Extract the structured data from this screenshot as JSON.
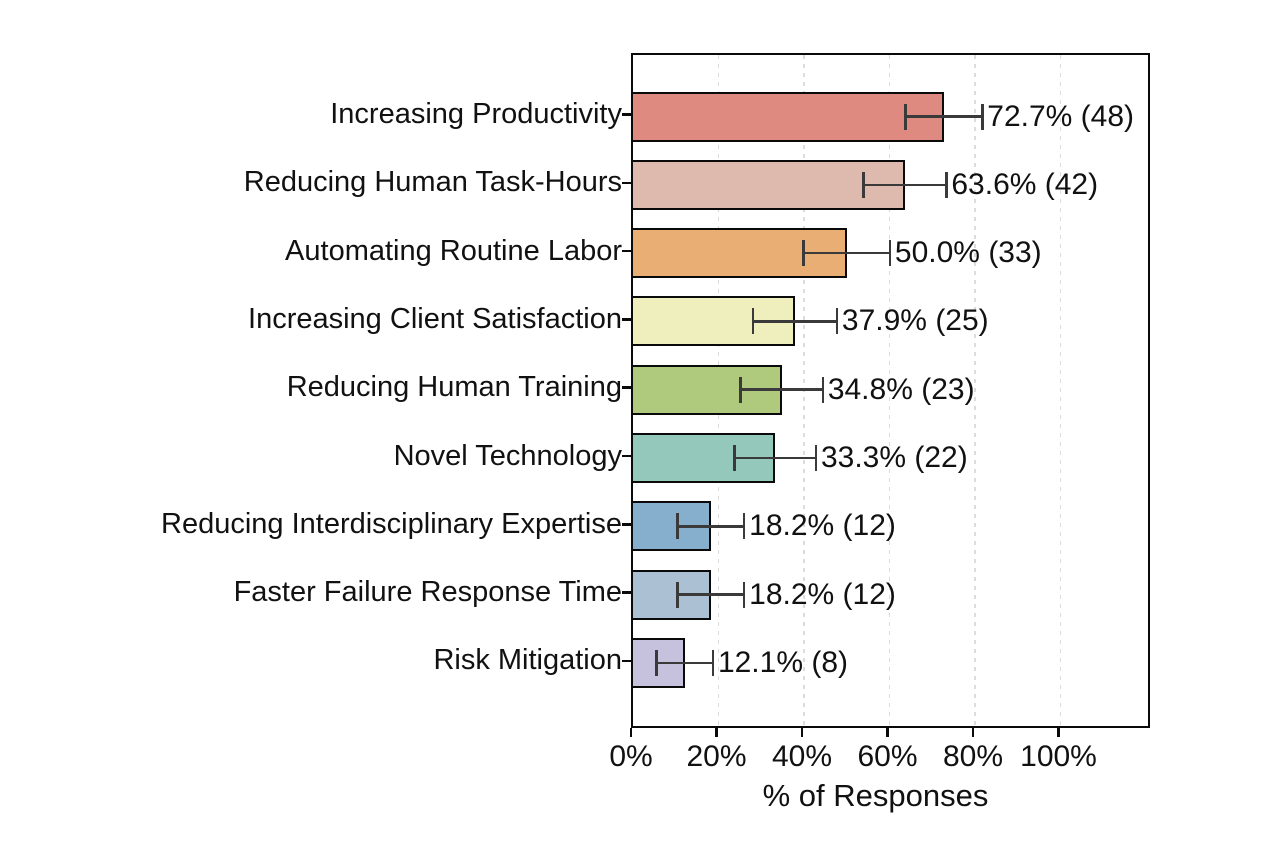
{
  "figure": {
    "background": "#ffffff",
    "text_color": "#111111",
    "bar_edge_color": "#0a0a0a",
    "error_bar_color": "#3a3a3a",
    "grid_color": "#dcdcdc"
  },
  "chart_data": {
    "type": "bar",
    "orientation": "horizontal",
    "title": "",
    "xlabel": "% of Responses",
    "ylabel": "",
    "xlim": [
      0,
      121.4
    ],
    "grid": {
      "axis": "x",
      "style": "dashed"
    },
    "xticks": [
      {
        "value": 0,
        "label": "0%"
      },
      {
        "value": 20,
        "label": "20%"
      },
      {
        "value": 40,
        "label": "40%"
      },
      {
        "value": 60,
        "label": "60%"
      },
      {
        "value": 80,
        "label": "80%"
      },
      {
        "value": 100,
        "label": "100%"
      }
    ],
    "bars": [
      {
        "category": "Increasing Productivity",
        "value": 72.7,
        "count": 48,
        "error": 9.0,
        "label": "72.7% (48)",
        "color": "#de8a81"
      },
      {
        "category": "Reducing Human Task-Hours",
        "value": 63.6,
        "count": 42,
        "error": 9.7,
        "label": "63.6% (42)",
        "color": "#deb9ae"
      },
      {
        "category": "Automating Routine Labor",
        "value": 50.0,
        "count": 33,
        "error": 10.1,
        "label": "50.0% (33)",
        "color": "#e8ae74"
      },
      {
        "category": "Increasing Client Satisfaction",
        "value": 37.9,
        "count": 25,
        "error": 9.8,
        "label": "37.9% (25)",
        "color": "#efeebd"
      },
      {
        "category": "Reducing Human Training",
        "value": 34.8,
        "count": 23,
        "error": 9.6,
        "label": "34.8% (23)",
        "color": "#afca7d"
      },
      {
        "category": "Novel Technology",
        "value": 33.3,
        "count": 22,
        "error": 9.5,
        "label": "33.3% (22)",
        "color": "#93c8bb"
      },
      {
        "category": "Reducing Interdisciplinary Expertise",
        "value": 18.2,
        "count": 12,
        "error": 7.8,
        "label": "18.2% (12)",
        "color": "#86aecd"
      },
      {
        "category": "Faster Failure Response Time",
        "value": 18.2,
        "count": 12,
        "error": 7.8,
        "label": "18.2% (12)",
        "color": "#abc0d2"
      },
      {
        "category": "Risk Mitigation",
        "value": 12.1,
        "count": 8,
        "error": 6.6,
        "label": "12.1% (8)",
        "color": "#c6c1dd"
      }
    ]
  }
}
